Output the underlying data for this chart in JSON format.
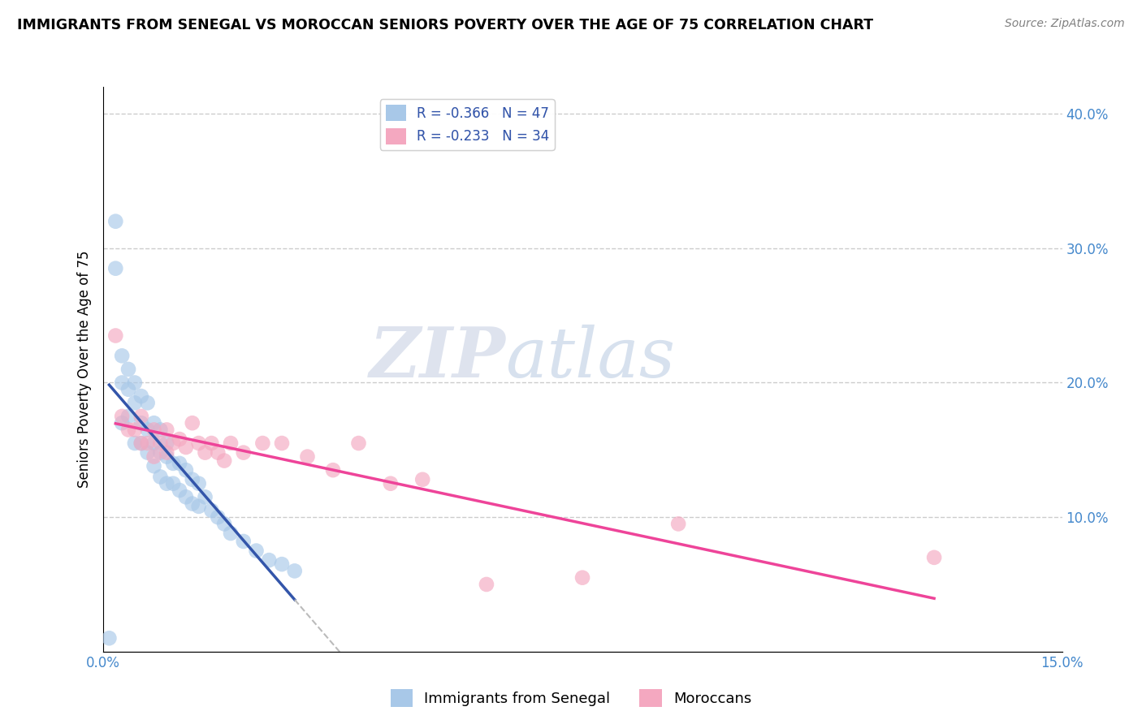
{
  "title": "IMMIGRANTS FROM SENEGAL VS MOROCCAN SENIORS POVERTY OVER THE AGE OF 75 CORRELATION CHART",
  "source": "Source: ZipAtlas.com",
  "ylabel": "Seniors Poverty Over the Age of 75",
  "xlim": [
    0.0,
    0.15
  ],
  "ylim": [
    0.0,
    0.42
  ],
  "yticks_right": [
    0.1,
    0.2,
    0.3,
    0.4
  ],
  "ytickslabels_right": [
    "10.0%",
    "20.0%",
    "30.0%",
    "40.0%"
  ],
  "watermark_zip": "ZIP",
  "watermark_atlas": "atlas",
  "legend1_label": "R = -0.366   N = 47",
  "legend2_label": "R = -0.233   N = 34",
  "legend_bottom1": "Immigrants from Senegal",
  "legend_bottom2": "Moroccans",
  "blue_color": "#a8c8e8",
  "pink_color": "#f4a8c0",
  "trend_blue": "#3355aa",
  "trend_pink": "#ee4499",
  "trend_gray": "#bbbbbb",
  "blue_scatter_x": [
    0.001,
    0.002,
    0.002,
    0.003,
    0.003,
    0.003,
    0.004,
    0.004,
    0.004,
    0.005,
    0.005,
    0.005,
    0.006,
    0.006,
    0.006,
    0.007,
    0.007,
    0.007,
    0.008,
    0.008,
    0.008,
    0.009,
    0.009,
    0.009,
    0.01,
    0.01,
    0.01,
    0.011,
    0.011,
    0.012,
    0.012,
    0.013,
    0.013,
    0.014,
    0.014,
    0.015,
    0.015,
    0.016,
    0.017,
    0.018,
    0.019,
    0.02,
    0.022,
    0.024,
    0.026,
    0.028,
    0.03
  ],
  "blue_scatter_y": [
    0.01,
    0.32,
    0.285,
    0.22,
    0.2,
    0.17,
    0.21,
    0.195,
    0.175,
    0.2,
    0.185,
    0.155,
    0.19,
    0.17,
    0.155,
    0.185,
    0.165,
    0.148,
    0.17,
    0.155,
    0.138,
    0.165,
    0.148,
    0.13,
    0.155,
    0.145,
    0.125,
    0.14,
    0.125,
    0.14,
    0.12,
    0.135,
    0.115,
    0.128,
    0.11,
    0.125,
    0.108,
    0.115,
    0.105,
    0.1,
    0.095,
    0.088,
    0.082,
    0.075,
    0.068,
    0.065,
    0.06
  ],
  "pink_scatter_x": [
    0.002,
    0.003,
    0.004,
    0.005,
    0.006,
    0.006,
    0.007,
    0.008,
    0.008,
    0.009,
    0.01,
    0.01,
    0.011,
    0.012,
    0.013,
    0.014,
    0.015,
    0.016,
    0.017,
    0.018,
    0.019,
    0.02,
    0.022,
    0.025,
    0.028,
    0.032,
    0.036,
    0.04,
    0.045,
    0.05,
    0.06,
    0.075,
    0.09,
    0.13
  ],
  "pink_scatter_y": [
    0.235,
    0.175,
    0.165,
    0.165,
    0.175,
    0.155,
    0.155,
    0.165,
    0.145,
    0.155,
    0.165,
    0.148,
    0.155,
    0.158,
    0.152,
    0.17,
    0.155,
    0.148,
    0.155,
    0.148,
    0.142,
    0.155,
    0.148,
    0.155,
    0.155,
    0.145,
    0.135,
    0.155,
    0.125,
    0.128,
    0.05,
    0.055,
    0.095,
    0.07
  ]
}
